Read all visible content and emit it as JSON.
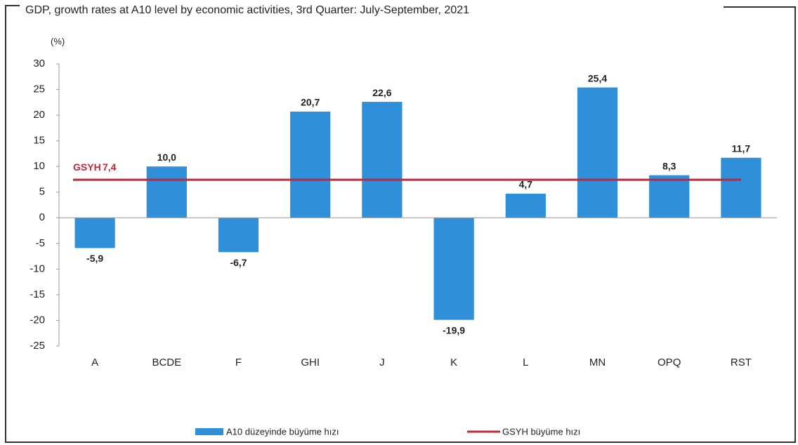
{
  "chart_data": {
    "type": "bar",
    "title": "GDP, growth rates at A10 level by economic activities, 3rd Quarter: July-September, 2021",
    "y_axis_label": "(%)",
    "categories": [
      "A",
      "BCDE",
      "F",
      "GHI",
      "J",
      "K",
      "L",
      "MN",
      "OPQ",
      "RST"
    ],
    "series": [
      {
        "name": "A10 düzeyinde büyüme hızı",
        "color": "#2f8fd8",
        "values": [
          -5.9,
          10.0,
          -6.7,
          20.7,
          22.6,
          -19.9,
          4.7,
          25.4,
          8.3,
          11.7
        ],
        "value_labels": [
          "-5,9",
          "10,0",
          "-6,7",
          "20,7",
          "22,6",
          "-19,9",
          "4,7",
          "25,4",
          "8,3",
          "11,7"
        ]
      }
    ],
    "reference_line": {
      "name": "GSYH büyüme hızı",
      "label": "GSYH",
      "value": 7.4,
      "value_label": "7,4",
      "color": "#c0283c"
    },
    "ylim": [
      -25,
      30
    ],
    "yticks": [
      -25,
      -20,
      -15,
      -10,
      -5,
      0,
      5,
      10,
      15,
      20,
      25,
      30
    ],
    "grid": false
  }
}
